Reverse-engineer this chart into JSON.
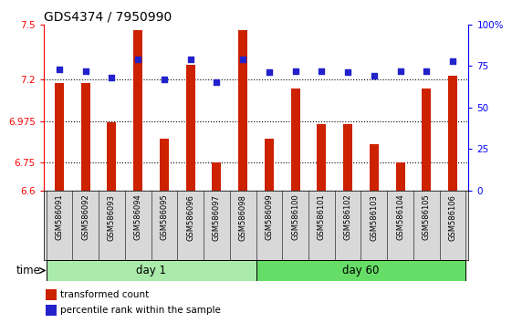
{
  "title": "GDS4374 / 7950990",
  "samples": [
    "GSM586091",
    "GSM586092",
    "GSM586093",
    "GSM586094",
    "GSM586095",
    "GSM586096",
    "GSM586097",
    "GSM586098",
    "GSM586099",
    "GSM586100",
    "GSM586101",
    "GSM586102",
    "GSM586103",
    "GSM586104",
    "GSM586105",
    "GSM586106"
  ],
  "transformed_count": [
    7.18,
    7.18,
    6.97,
    7.47,
    6.88,
    7.28,
    6.75,
    7.47,
    6.88,
    7.15,
    6.96,
    6.96,
    6.85,
    6.75,
    7.15,
    7.22
  ],
  "percentile_rank": [
    73,
    72,
    68,
    79,
    67,
    79,
    65,
    79,
    71,
    72,
    72,
    71,
    69,
    72,
    72,
    78
  ],
  "day1_count": 8,
  "day2_count": 8,
  "day1_label": "day 1",
  "day2_label": "day 60",
  "ylim_left": [
    6.6,
    7.5
  ],
  "ylim_right": [
    0,
    100
  ],
  "yticks_left": [
    6.6,
    6.75,
    6.975,
    7.2,
    7.5
  ],
  "yticks_right": [
    0,
    25,
    50,
    75,
    100
  ],
  "bar_color": "#cc2200",
  "dot_color": "#2222cc",
  "bar_width": 0.35,
  "baseline": 6.6,
  "legend_bar_label": "transformed count",
  "legend_dot_label": "percentile rank within the sample",
  "time_label": "time",
  "bg_day1": "#aaeaaa",
  "bg_day2": "#66dd66",
  "title_fontsize": 10,
  "tick_fontsize": 7.5,
  "label_fontsize": 8.5,
  "legend_fontsize": 7.5
}
